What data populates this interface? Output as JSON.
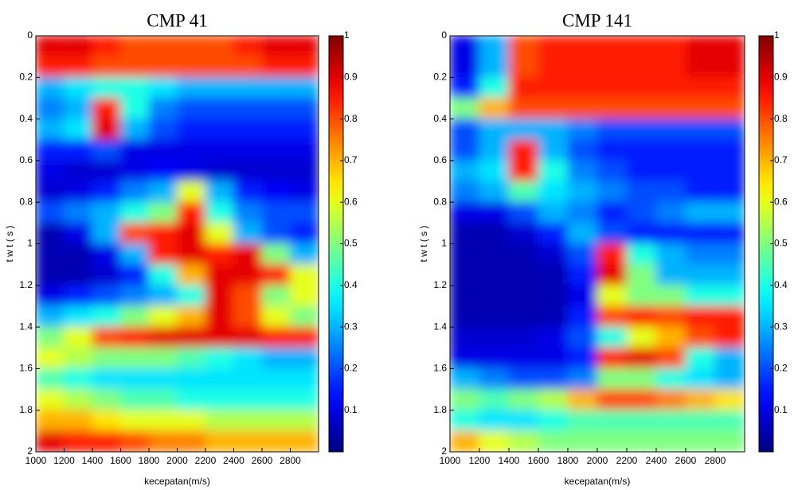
{
  "chart_data": [
    {
      "type": "heatmap",
      "title": "CMP 41",
      "xlabel": "kecepatan(m/s)",
      "ylabel": "t w t ( s )",
      "colormap": "jet",
      "y_reversed": true,
      "xlim": [
        1000,
        3000
      ],
      "xticks": [
        1000,
        1200,
        1400,
        1600,
        1800,
        2000,
        2200,
        2400,
        2600,
        2800
      ],
      "ylim": [
        0,
        2
      ],
      "yticks": [
        0,
        0.2,
        0.4,
        0.6,
        0.8,
        1,
        1.2,
        1.4,
        1.6,
        1.8,
        2
      ],
      "clim": [
        0,
        1
      ],
      "cticks": [
        0.1,
        0.2,
        0.3,
        0.4,
        0.5,
        0.6,
        0.7,
        0.8,
        0.9,
        1
      ],
      "xbins": [
        1000,
        1200,
        1400,
        1600,
        1800,
        2000,
        2200,
        2400,
        2600,
        2800,
        3000
      ],
      "ybins": [
        0,
        0.1,
        0.2,
        0.3,
        0.4,
        0.5,
        0.6,
        0.7,
        0.8,
        0.9,
        1,
        1.1,
        1.2,
        1.3,
        1.4,
        1.5,
        1.6,
        1.7,
        1.8,
        1.9,
        2
      ],
      "values": [
        [
          0.9,
          0.9,
          0.85,
          0.8,
          0.8,
          0.8,
          0.8,
          0.85,
          0.9,
          0.9
        ],
        [
          0.85,
          0.85,
          0.8,
          0.8,
          0.8,
          0.8,
          0.8,
          0.8,
          0.85,
          0.85
        ],
        [
          0.3,
          0.35,
          0.4,
          0.4,
          0.35,
          0.3,
          0.3,
          0.3,
          0.3,
          0.3
        ],
        [
          0.25,
          0.3,
          0.85,
          0.4,
          0.25,
          0.2,
          0.2,
          0.2,
          0.2,
          0.2
        ],
        [
          0.3,
          0.35,
          0.9,
          0.3,
          0.2,
          0.15,
          0.15,
          0.15,
          0.15,
          0.15
        ],
        [
          0.15,
          0.15,
          0.2,
          0.1,
          0.1,
          0.1,
          0.1,
          0.1,
          0.1,
          0.1
        ],
        [
          0.1,
          0.08,
          0.08,
          0.1,
          0.12,
          0.1,
          0.08,
          0.08,
          0.08,
          0.08
        ],
        [
          0.08,
          0.1,
          0.15,
          0.25,
          0.3,
          0.6,
          0.3,
          0.15,
          0.12,
          0.1
        ],
        [
          0.2,
          0.25,
          0.3,
          0.4,
          0.5,
          0.85,
          0.4,
          0.25,
          0.2,
          0.2
        ],
        [
          0.05,
          0.1,
          0.3,
          0.8,
          0.85,
          0.9,
          0.6,
          0.3,
          0.2,
          0.15
        ],
        [
          0.05,
          0.05,
          0.1,
          0.3,
          0.85,
          0.9,
          0.85,
          0.9,
          0.5,
          0.3
        ],
        [
          0.05,
          0.05,
          0.08,
          0.15,
          0.4,
          0.7,
          0.9,
          0.9,
          0.85,
          0.6
        ],
        [
          0.1,
          0.15,
          0.2,
          0.25,
          0.3,
          0.4,
          0.9,
          0.8,
          0.5,
          0.6
        ],
        [
          0.3,
          0.35,
          0.4,
          0.5,
          0.6,
          0.7,
          0.9,
          0.8,
          0.6,
          0.5
        ],
        [
          0.5,
          0.6,
          0.8,
          0.85,
          0.9,
          0.9,
          0.9,
          0.9,
          0.85,
          0.85
        ],
        [
          0.6,
          0.55,
          0.5,
          0.5,
          0.5,
          0.45,
          0.4,
          0.35,
          0.3,
          0.3
        ],
        [
          0.45,
          0.4,
          0.35,
          0.35,
          0.35,
          0.35,
          0.35,
          0.35,
          0.35,
          0.35
        ],
        [
          0.6,
          0.55,
          0.5,
          0.45,
          0.45,
          0.4,
          0.4,
          0.4,
          0.4,
          0.4
        ],
        [
          0.7,
          0.7,
          0.65,
          0.6,
          0.6,
          0.6,
          0.55,
          0.55,
          0.55,
          0.55
        ],
        [
          0.9,
          0.85,
          0.85,
          0.8,
          0.75,
          0.75,
          0.7,
          0.7,
          0.7,
          0.7
        ]
      ]
    },
    {
      "type": "heatmap",
      "title": "CMP 141",
      "xlabel": "kecepatan(m/s)",
      "ylabel": "t w t ( s )",
      "colormap": "jet",
      "y_reversed": true,
      "xlim": [
        1000,
        3000
      ],
      "xticks": [
        1000,
        1200,
        1400,
        1600,
        1800,
        2000,
        2200,
        2400,
        2600,
        2800
      ],
      "ylim": [
        0,
        2
      ],
      "yticks": [
        0,
        0.2,
        0.4,
        0.6,
        0.8,
        1,
        1.2,
        1.4,
        1.6,
        1.8,
        2
      ],
      "clim": [
        0,
        1
      ],
      "cticks": [
        0.1,
        0.2,
        0.3,
        0.4,
        0.5,
        0.6,
        0.7,
        0.8,
        0.9,
        1
      ],
      "xbins": [
        1000,
        1200,
        1400,
        1600,
        1800,
        2000,
        2200,
        2400,
        2600,
        2800,
        3000
      ],
      "ybins": [
        0,
        0.1,
        0.2,
        0.3,
        0.4,
        0.5,
        0.6,
        0.7,
        0.8,
        0.9,
        1,
        1.1,
        1.2,
        1.3,
        1.4,
        1.5,
        1.6,
        1.7,
        1.8,
        1.9,
        2
      ],
      "values": [
        [
          0.1,
          0.3,
          0.8,
          0.85,
          0.85,
          0.85,
          0.85,
          0.85,
          0.9,
          0.9
        ],
        [
          0.1,
          0.3,
          0.8,
          0.85,
          0.85,
          0.85,
          0.85,
          0.85,
          0.9,
          0.9
        ],
        [
          0.15,
          0.4,
          0.85,
          0.85,
          0.85,
          0.85,
          0.85,
          0.85,
          0.85,
          0.85
        ],
        [
          0.5,
          0.7,
          0.8,
          0.8,
          0.8,
          0.8,
          0.8,
          0.8,
          0.8,
          0.8
        ],
        [
          0.2,
          0.3,
          0.3,
          0.3,
          0.25,
          0.2,
          0.2,
          0.2,
          0.2,
          0.2
        ],
        [
          0.2,
          0.3,
          0.85,
          0.3,
          0.2,
          0.15,
          0.15,
          0.15,
          0.15,
          0.15
        ],
        [
          0.3,
          0.35,
          0.85,
          0.4,
          0.25,
          0.2,
          0.15,
          0.15,
          0.15,
          0.15
        ],
        [
          0.25,
          0.3,
          0.45,
          0.35,
          0.3,
          0.25,
          0.2,
          0.2,
          0.15,
          0.15
        ],
        [
          0.1,
          0.1,
          0.2,
          0.3,
          0.25,
          0.15,
          0.2,
          0.25,
          0.3,
          0.3
        ],
        [
          0.05,
          0.05,
          0.08,
          0.15,
          0.3,
          0.2,
          0.15,
          0.15,
          0.15,
          0.15
        ],
        [
          0.05,
          0.05,
          0.05,
          0.08,
          0.2,
          0.85,
          0.4,
          0.3,
          0.25,
          0.25
        ],
        [
          0.05,
          0.05,
          0.05,
          0.05,
          0.15,
          0.9,
          0.5,
          0.3,
          0.3,
          0.3
        ],
        [
          0.05,
          0.05,
          0.05,
          0.05,
          0.1,
          0.6,
          0.5,
          0.5,
          0.4,
          0.4
        ],
        [
          0.05,
          0.05,
          0.05,
          0.05,
          0.15,
          0.8,
          0.85,
          0.8,
          0.85,
          0.85
        ],
        [
          0.08,
          0.08,
          0.08,
          0.1,
          0.2,
          0.4,
          0.6,
          0.7,
          0.8,
          0.85
        ],
        [
          0.1,
          0.1,
          0.1,
          0.1,
          0.15,
          0.85,
          0.9,
          0.8,
          0.4,
          0.3
        ],
        [
          0.3,
          0.25,
          0.2,
          0.2,
          0.25,
          0.5,
          0.5,
          0.4,
          0.35,
          0.3
        ],
        [
          0.5,
          0.45,
          0.5,
          0.55,
          0.7,
          0.8,
          0.8,
          0.75,
          0.7,
          0.65
        ],
        [
          0.4,
          0.35,
          0.35,
          0.4,
          0.45,
          0.45,
          0.45,
          0.45,
          0.45,
          0.45
        ],
        [
          0.7,
          0.6,
          0.55,
          0.5,
          0.5,
          0.5,
          0.5,
          0.5,
          0.5,
          0.5
        ]
      ]
    }
  ]
}
